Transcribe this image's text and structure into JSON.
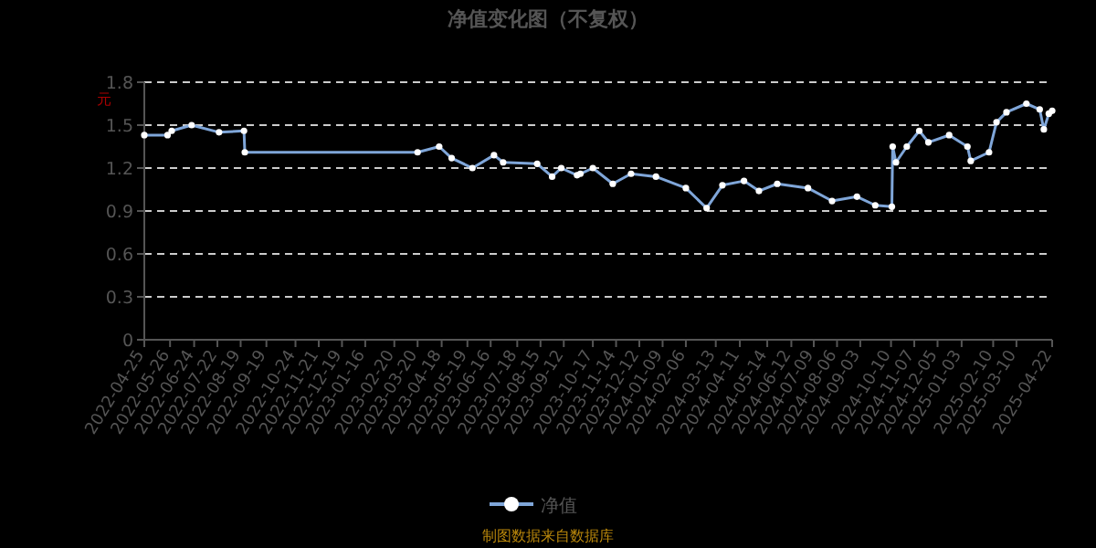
{
  "chart_data": {
    "type": "line",
    "title": "净值变化图（不复权）",
    "ylabel": "元",
    "annotations": [
      "制图数据来自数据库"
    ],
    "x": [
      "2022-04-25",
      "2022-05-23",
      "2022-05-28",
      "2022-06-21",
      "2022-07-24",
      "2022-08-23",
      "2022-08-24",
      "2023-03-20",
      "2023-04-15",
      "2023-04-30",
      "2023-05-25",
      "2023-06-20",
      "2023-07-01",
      "2023-08-11",
      "2023-08-29",
      "2023-09-09",
      "2023-09-28",
      "2023-10-02",
      "2023-10-17",
      "2023-11-10",
      "2023-12-02",
      "2024-01-01",
      "2024-02-06",
      "2024-03-02",
      "2024-03-21",
      "2024-04-16",
      "2024-05-04",
      "2024-05-26",
      "2024-07-02",
      "2024-07-31",
      "2024-08-30",
      "2024-09-21",
      "2024-10-11",
      "2024-10-12",
      "2024-10-16",
      "2024-10-29",
      "2024-11-13",
      "2024-11-24",
      "2024-12-19",
      "2025-01-10",
      "2025-01-14",
      "2025-02-05",
      "2025-02-14",
      "2025-02-26",
      "2025-03-22",
      "2025-04-07",
      "2025-04-12",
      "2025-04-18",
      "2025-04-22"
    ],
    "series": [
      {
        "name": "净值",
        "color": "#7fa6d9",
        "values": [
          1.43,
          1.43,
          1.46,
          1.5,
          1.45,
          1.46,
          1.31,
          1.31,
          1.35,
          1.27,
          1.2,
          1.29,
          1.24,
          1.23,
          1.14,
          1.2,
          1.15,
          1.16,
          1.2,
          1.09,
          1.16,
          1.14,
          1.06,
          0.92,
          1.08,
          1.11,
          1.04,
          1.09,
          1.06,
          0.97,
          1.0,
          0.94,
          0.93,
          1.35,
          1.24,
          1.35,
          1.46,
          1.38,
          1.43,
          1.35,
          1.25,
          1.31,
          1.52,
          1.59,
          1.65,
          1.61,
          1.47,
          1.58,
          1.6
        ]
      }
    ],
    "xlim": [
      "2022-04-25",
      "2025-04-22"
    ],
    "xticks": [
      "2022-04-25",
      "2022-05-26",
      "2022-06-24",
      "2022-07-22",
      "2022-08-19",
      "2022-09-19",
      "2022-10-24",
      "2022-11-21",
      "2022-12-19",
      "2023-01-16",
      "2023-02-20",
      "2023-03-20",
      "2023-04-18",
      "2023-05-19",
      "2023-06-16",
      "2023-07-18",
      "2023-08-15",
      "2023-09-12",
      "2023-10-17",
      "2023-11-14",
      "2023-12-12",
      "2024-01-09",
      "2024-02-06",
      "2024-03-13",
      "2024-04-11",
      "2024-05-14",
      "2024-06-12",
      "2024-07-09",
      "2024-08-06",
      "2024-09-03",
      "2024-10-10",
      "2024-11-07",
      "2024-12-05",
      "2025-01-03",
      "2025-02-10",
      "2025-03-10",
      "2025-04-22"
    ],
    "ylim": [
      0,
      1.8
    ],
    "yticks": [
      0,
      0.3,
      0.6,
      0.9,
      1.2,
      1.5,
      1.8
    ],
    "grid": "y",
    "legend": "bottom",
    "marker": "circle",
    "line_style": "solid"
  }
}
